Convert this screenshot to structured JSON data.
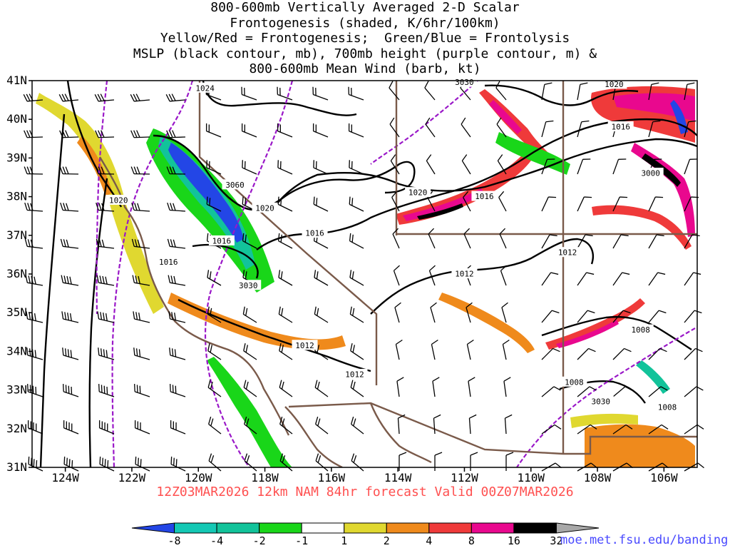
{
  "title_lines": [
    "800-600mb Vertically Averaged 2-D Scalar",
    "Frontogenesis (shaded, K/6hr/100km)",
    "Yellow/Red = Frontogenesis;  Green/Blue = Frontolysis",
    "MSLP (black contour, mb), 700mb height (purple contour, m) &",
    "800-600mb Mean Wind (barb, kt)"
  ],
  "subtitle": "12Z03MAR2026 12km NAM 84hr forecast Valid 00Z07MAR2026",
  "credit": "moe.met.fsu.edu/banding",
  "colors": {
    "frontolysis_strong": "#2346e6",
    "frontolysis_mid": "#12c39a",
    "frontolysis_weak": "#19d619",
    "frontogenesis_weak": "#e0d830",
    "frontogenesis_mid": "#ef8a1c",
    "frontogenesis_strong": "#ef3a3a",
    "frontogenesis_extreme": "#e9088e",
    "mslp_contour": "#000000",
    "height_contour": "#9a18c8",
    "state_border": "#7a5a4a"
  },
  "chart_data": {
    "type": "heatmap",
    "x_axis": {
      "min": -125,
      "max": -105,
      "ticks": [
        "124W",
        "122W",
        "120W",
        "118W",
        "116W",
        "114W",
        "112W",
        "110W",
        "108W",
        "106W"
      ]
    },
    "y_axis": {
      "min": 31,
      "max": 41,
      "ticks": [
        "31N",
        "32N",
        "33N",
        "34N",
        "35N",
        "36N",
        "37N",
        "38N",
        "39N",
        "40N",
        "41N"
      ]
    },
    "colorbar": {
      "labels": [
        "-8",
        "-4",
        "-2",
        "-1",
        "1",
        "2",
        "4",
        "8",
        "16",
        "32"
      ],
      "colors": [
        "#2346e6",
        "#14c8b4",
        "#12c39a",
        "#19d619",
        "#ffffff",
        "#e0d830",
        "#ef8a1c",
        "#ef3a3a",
        "#e9088e",
        "#000000",
        "#a8a8a8"
      ]
    },
    "mslp_contour_labels": [
      {
        "text": "1024",
        "lon": -119.8,
        "lat": 40.8
      },
      {
        "text": "1020",
        "lon": -122.4,
        "lat": 37.9
      },
      {
        "text": "1020",
        "lon": -118.0,
        "lat": 37.7
      },
      {
        "text": "1020",
        "lon": -113.4,
        "lat": 38.1
      },
      {
        "text": "1020",
        "lon": -107.5,
        "lat": 40.9
      },
      {
        "text": "1016",
        "lon": -111.4,
        "lat": 38.0
      },
      {
        "text": "1016",
        "lon": -107.3,
        "lat": 39.8
      },
      {
        "text": "1016",
        "lon": -116.5,
        "lat": 37.05
      },
      {
        "text": "1016",
        "lon": -119.3,
        "lat": 36.85
      },
      {
        "text": "1016",
        "lon": -120.9,
        "lat": 36.3
      },
      {
        "text": "1012",
        "lon": -108.9,
        "lat": 36.55
      },
      {
        "text": "1012",
        "lon": -112.0,
        "lat": 36.0
      },
      {
        "text": "1012",
        "lon": -116.8,
        "lat": 34.15
      },
      {
        "text": "1012",
        "lon": -115.3,
        "lat": 33.4
      },
      {
        "text": "1008",
        "lon": -106.7,
        "lat": 34.55
      },
      {
        "text": "1008",
        "lon": -108.7,
        "lat": 33.2
      },
      {
        "text": "1008",
        "lon": -105.9,
        "lat": 32.55
      }
    ],
    "height_contour_labels": [
      {
        "text": "3060",
        "lon": -118.9,
        "lat": 38.3
      },
      {
        "text": "3030",
        "lon": -118.5,
        "lat": 35.7
      },
      {
        "text": "3030",
        "lon": -112.0,
        "lat": 40.95
      },
      {
        "text": "3030",
        "lon": -107.9,
        "lat": 32.7
      },
      {
        "text": "3000",
        "lon": -106.4,
        "lat": 38.6
      }
    ]
  }
}
